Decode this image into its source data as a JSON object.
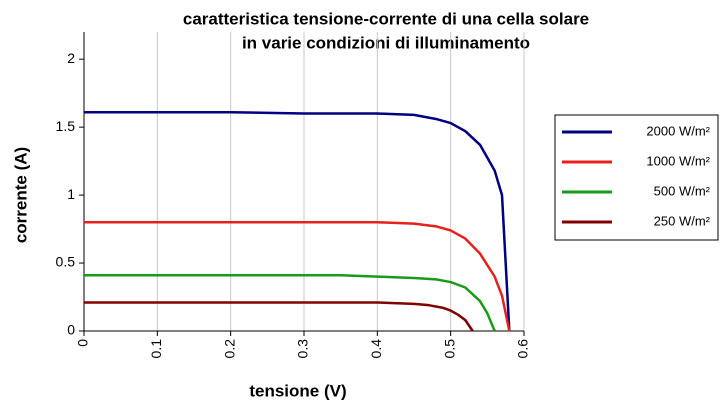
{
  "chart_data": {
    "type": "line",
    "title": [
      "caratteristica tensione-corrente di una cella solare",
      "in varie condizioni di illuminamento"
    ],
    "x_label": "tensione (V)",
    "y_label": "corrente (A)",
    "xlim": [
      0,
      0.6
    ],
    "xticks": [
      0,
      0.1,
      0.2,
      0.3,
      0.4,
      0.5,
      0.6
    ],
    "ylim": [
      0,
      2.2
    ],
    "yticks": [
      0,
      0.5,
      1,
      1.5,
      2
    ],
    "grid": "x",
    "legend": "right",
    "series": [
      {
        "name": "2000 W/m²",
        "color": "#000080",
        "x": [
          0,
          0.1,
          0.2,
          0.3,
          0.4,
          0.45,
          0.48,
          0.5,
          0.52,
          0.54,
          0.56,
          0.57,
          0.575,
          0.58
        ],
        "values": [
          1.61,
          1.61,
          1.61,
          1.6,
          1.6,
          1.59,
          1.56,
          1.53,
          1.47,
          1.37,
          1.18,
          1.0,
          0.5,
          0
        ]
      },
      {
        "name": "1000 W/m²",
        "color": "#e8201c",
        "x": [
          0,
          0.1,
          0.2,
          0.3,
          0.4,
          0.45,
          0.48,
          0.5,
          0.52,
          0.54,
          0.56,
          0.57,
          0.58
        ],
        "values": [
          0.8,
          0.8,
          0.8,
          0.8,
          0.8,
          0.79,
          0.77,
          0.74,
          0.68,
          0.57,
          0.4,
          0.26,
          0
        ]
      },
      {
        "name": "500 W/m²",
        "color": "#1a9a1a",
        "x": [
          0,
          0.1,
          0.2,
          0.3,
          0.35,
          0.4,
          0.45,
          0.48,
          0.5,
          0.52,
          0.54,
          0.55,
          0.56
        ],
        "values": [
          0.41,
          0.41,
          0.41,
          0.41,
          0.41,
          0.4,
          0.39,
          0.38,
          0.36,
          0.32,
          0.22,
          0.13,
          0
        ]
      },
      {
        "name": "250 W/m²",
        "color": "#800000",
        "x": [
          0,
          0.1,
          0.2,
          0.3,
          0.4,
          0.45,
          0.47,
          0.49,
          0.5,
          0.51,
          0.52,
          0.53
        ],
        "values": [
          0.21,
          0.21,
          0.21,
          0.21,
          0.21,
          0.2,
          0.19,
          0.17,
          0.15,
          0.12,
          0.08,
          0
        ]
      }
    ]
  }
}
